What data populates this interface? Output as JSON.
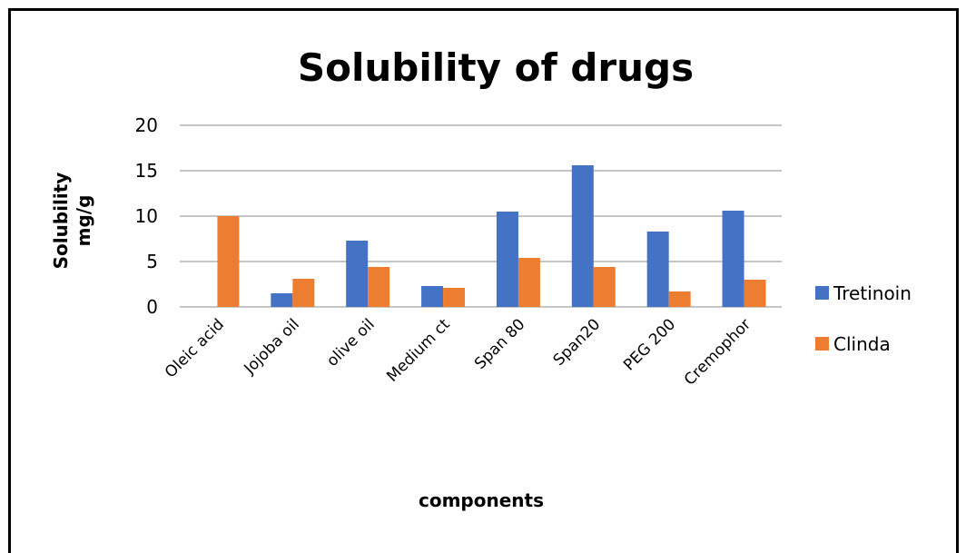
{
  "chart_data": {
    "type": "bar",
    "title": "Solubility of drugs",
    "xlabel": "components",
    "ylabel_lines": [
      "Solubility",
      "mg/g"
    ],
    "ylim": [
      0,
      20
    ],
    "yticks": [
      0,
      5,
      10,
      15,
      20
    ],
    "grid": true,
    "legend_position": "right",
    "categories": [
      "Oleic acid",
      "Jojoba oil",
      "olive oil",
      "Medium ct",
      "Span 80",
      "Span20",
      "PEG 200",
      "Cremophor"
    ],
    "series": [
      {
        "name": "Tretinoin",
        "color": "#4472C4",
        "values": [
          0,
          1.5,
          7.3,
          2.3,
          10.5,
          15.6,
          8.3,
          10.6
        ]
      },
      {
        "name": "Clinda",
        "color": "#ED7D31",
        "values": [
          10.0,
          3.1,
          4.4,
          2.1,
          5.4,
          4.4,
          1.7,
          3.0
        ]
      }
    ]
  }
}
